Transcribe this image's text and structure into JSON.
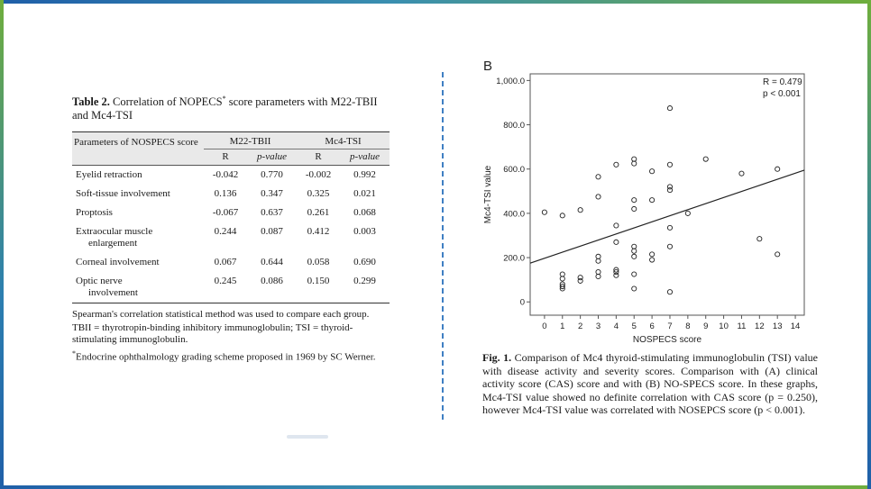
{
  "table": {
    "label": "Table 2.",
    "title": "Correlation of NOPECS",
    "title_sup": "*",
    "title_rest": " score parameters with M22-TBII and Mc4-TSI",
    "param_header": "Parameters of NOSPECS score",
    "groups": [
      "M22-TBII",
      "Mc4-TSI"
    ],
    "subheaders": [
      "R",
      "p-value",
      "R",
      "p-value"
    ],
    "rows": [
      {
        "param": "Eyelid retraction",
        "param2": "",
        "r1": "-0.042",
        "p1": "0.770",
        "r2": "-0.002",
        "p2": "0.992"
      },
      {
        "param": "Soft-tissue involvement",
        "param2": "",
        "r1": "0.136",
        "p1": "0.347",
        "r2": "0.325",
        "p2": "0.021"
      },
      {
        "param": "Proptosis",
        "param2": "",
        "r1": "-0.067",
        "p1": "0.637",
        "r2": "0.261",
        "p2": "0.068"
      },
      {
        "param": "Extraocular muscle",
        "param2": "enlargement",
        "r1": "0.244",
        "p1": "0.087",
        "r2": "0.412",
        "p2": "0.003"
      },
      {
        "param": "Corneal involvement",
        "param2": "",
        "r1": "0.067",
        "p1": "0.644",
        "r2": "0.058",
        "p2": "0.690"
      },
      {
        "param": "Optic nerve",
        "param2": "involvement",
        "r1": "0.245",
        "p1": "0.086",
        "r2": "0.150",
        "p2": "0.299"
      }
    ],
    "notes": [
      "Spearman's correlation statistical method was used to compare each group.",
      "TBII = thyrotropin-binding inhibitory immunoglobulin; TSI = thyroid-stimulating immunoglobulin."
    ],
    "footnote_mark": "*",
    "footnote": "Endocrine ophthalmology grading scheme proposed in 1969 by SC Werner."
  },
  "chart_data": {
    "type": "scatter",
    "panel_label": "B",
    "xlabel": "NOSPECS score",
    "ylabel": "Mc4-TSI value",
    "xlim": [
      -0.8,
      14.5
    ],
    "ylim": [
      -60,
      1030
    ],
    "xticks": [
      0,
      1,
      2,
      3,
      4,
      5,
      6,
      7,
      8,
      9,
      10,
      11,
      12,
      13,
      14
    ],
    "yticks": [
      0,
      200.0,
      400.0,
      600.0,
      800.0,
      1000.0
    ],
    "ytick_labels": [
      "0",
      "200.0",
      "400.0",
      "600.0",
      "800.0",
      "1,000.0"
    ],
    "annotation": [
      "R = 0.479",
      "p < 0.001"
    ],
    "fit_line": {
      "x": [
        -0.8,
        14.5
      ],
      "y": [
        175,
        595
      ]
    },
    "points": [
      [
        0,
        405
      ],
      [
        1,
        390
      ],
      [
        1,
        125
      ],
      [
        1,
        105
      ],
      [
        1,
        80
      ],
      [
        1,
        70
      ],
      [
        1,
        60
      ],
      [
        2,
        415
      ],
      [
        2,
        110
      ],
      [
        2,
        95
      ],
      [
        3,
        565
      ],
      [
        3,
        475
      ],
      [
        3,
        205
      ],
      [
        3,
        185
      ],
      [
        3,
        135
      ],
      [
        3,
        115
      ],
      [
        4,
        620
      ],
      [
        4,
        345
      ],
      [
        4,
        270
      ],
      [
        4,
        145
      ],
      [
        4,
        135
      ],
      [
        4,
        120
      ],
      [
        5,
        645
      ],
      [
        5,
        625
      ],
      [
        5,
        460
      ],
      [
        5,
        420
      ],
      [
        5,
        250
      ],
      [
        5,
        230
      ],
      [
        5,
        205
      ],
      [
        5,
        125
      ],
      [
        5,
        60
      ],
      [
        6,
        590
      ],
      [
        6,
        460
      ],
      [
        6,
        215
      ],
      [
        6,
        190
      ],
      [
        7,
        875
      ],
      [
        7,
        620
      ],
      [
        7,
        520
      ],
      [
        7,
        505
      ],
      [
        7,
        335
      ],
      [
        7,
        250
      ],
      [
        7,
        45
      ],
      [
        8,
        400
      ],
      [
        9,
        645
      ],
      [
        11,
        580
      ],
      [
        12,
        285
      ],
      [
        13,
        600
      ],
      [
        13,
        215
      ]
    ]
  },
  "caption": {
    "label": "Fig. 1.",
    "text": " Comparison of Mc4 thyroid-stimulating immunoglobulin (TSI) value with disease activity and severity scores. Comparison with (A) clinical activity score (CAS) score and with (B) NO-SPECS score. In these graphs, Mc4-TSI value showed no definite correlation with CAS score (p = 0.250), however Mc4-TSI value was correlated with NOSEPCS score (p < 0.001)."
  }
}
